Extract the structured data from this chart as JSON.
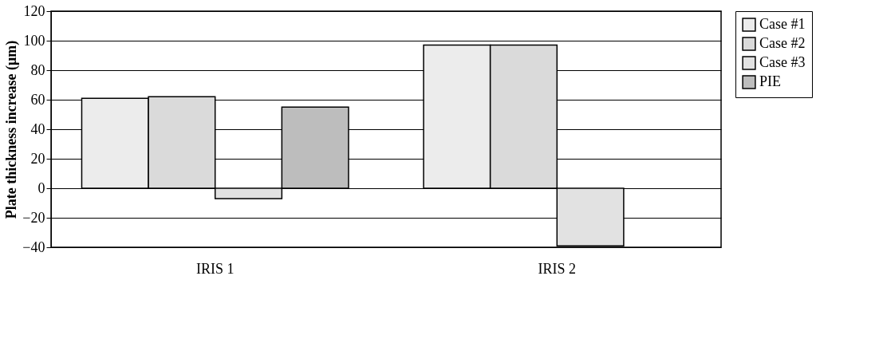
{
  "chart_data": {
    "type": "bar",
    "ylabel": "Plate thickness increase (μm)",
    "categories": [
      "IRIS 1",
      "IRIS 2"
    ],
    "series": [
      {
        "name": "Case #1",
        "color": "#ececec",
        "values": [
          61,
          97
        ]
      },
      {
        "name": "Case #2",
        "color": "#dadada",
        "values": [
          62,
          97
        ]
      },
      {
        "name": "Case #3",
        "color": "#e2e2e2",
        "values": [
          -7,
          -39
        ]
      },
      {
        "name": "PIE",
        "color": "#bdbdbd",
        "values": [
          55,
          null
        ]
      }
    ],
    "ylim": [
      -40,
      120
    ],
    "yticks": [
      -40,
      -20,
      0,
      20,
      40,
      60,
      80,
      100,
      120
    ],
    "grid": "y",
    "legend": "right"
  }
}
